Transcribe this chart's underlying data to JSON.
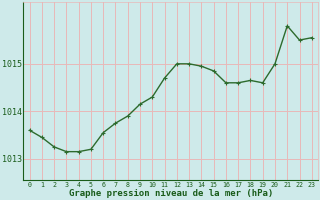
{
  "x": [
    0,
    1,
    2,
    3,
    4,
    5,
    6,
    7,
    8,
    9,
    10,
    11,
    12,
    13,
    14,
    15,
    16,
    17,
    18,
    19,
    20,
    21,
    22,
    23
  ],
  "y": [
    1013.6,
    1013.45,
    1013.25,
    1013.15,
    1013.15,
    1013.2,
    1013.55,
    1013.75,
    1013.9,
    1014.15,
    1014.3,
    1014.7,
    1015.0,
    1015.0,
    1014.95,
    1014.85,
    1014.6,
    1014.6,
    1014.65,
    1014.6,
    1015.0,
    1015.8,
    1015.5,
    1015.55
  ],
  "line_color": "#2d6b2d",
  "marker_color": "#2d6b2d",
  "bg_color": "#ceeaea",
  "grid_color": "#e8b8b8",
  "xlabel": "Graphe pression niveau de la mer (hPa)",
  "xlabel_color": "#1a5c1a",
  "tick_color": "#1a5c1a",
  "ylim": [
    1012.55,
    1016.3
  ],
  "yticks": [
    1013,
    1014,
    1015
  ],
  "xticks": [
    0,
    1,
    2,
    3,
    4,
    5,
    6,
    7,
    8,
    9,
    10,
    11,
    12,
    13,
    14,
    15,
    16,
    17,
    18,
    19,
    20,
    21,
    22,
    23
  ],
  "marker_size": 2.5,
  "line_width": 1.0
}
